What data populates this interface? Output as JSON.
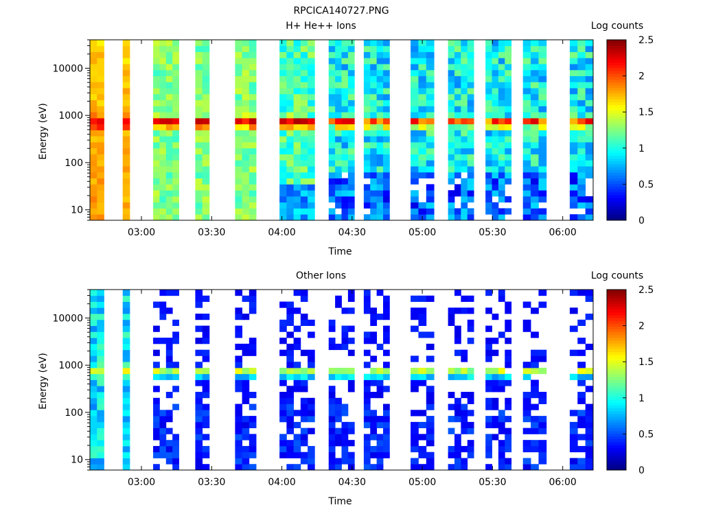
{
  "figure_title": "RPCICA140727.PNG",
  "chart_data": [
    {
      "type": "heatmap",
      "title": "H+ He++ Ions",
      "xlabel": "Time",
      "ylabel": "Energy (eV)",
      "yscale": "log",
      "ylim": [
        6,
        40000
      ],
      "y_tick_labels": [
        "10",
        "100",
        "1000",
        "10000"
      ],
      "y_tick_values": [
        10,
        100,
        1000,
        10000
      ],
      "x_tick_labels": [
        "03:00",
        "03:30",
        "04:00",
        "04:30",
        "05:00",
        "05:30",
        "06:00"
      ],
      "x_tick_minutes": [
        180,
        210,
        240,
        270,
        300,
        330,
        360
      ],
      "xlim_minutes": [
        158,
        373
      ],
      "colorbar": {
        "label": "Log counts",
        "min": 0,
        "max": 2.5,
        "ticks": [
          "0",
          "0.5",
          "1",
          "1.5",
          "2",
          "2.5"
        ],
        "colormap": "jet"
      },
      "data_blocks_minutes": [
        {
          "start": 158,
          "end": 164,
          "level": "high"
        },
        {
          "start": 172,
          "end": 175,
          "level": "high"
        },
        {
          "start": 185,
          "end": 196,
          "level": "mid"
        },
        {
          "start": 203,
          "end": 209,
          "level": "mid"
        },
        {
          "start": 220,
          "end": 229,
          "level": "mid"
        },
        {
          "start": 239,
          "end": 254,
          "level": "mid-low"
        },
        {
          "start": 260,
          "end": 271,
          "level": "low"
        },
        {
          "start": 275,
          "end": 286,
          "level": "low"
        },
        {
          "start": 295,
          "end": 305,
          "level": "low"
        },
        {
          "start": 311,
          "end": 322,
          "level": "low"
        },
        {
          "start": 327,
          "end": 338,
          "level": "low"
        },
        {
          "start": 343,
          "end": 353,
          "level": "low"
        },
        {
          "start": 363,
          "end": 373,
          "level": "low"
        }
      ],
      "peak_energy_eV": 700
    },
    {
      "type": "heatmap",
      "title": "Other Ions",
      "xlabel": "Time",
      "ylabel": "Energy (eV)",
      "yscale": "log",
      "ylim": [
        6,
        40000
      ],
      "y_tick_labels": [
        "10",
        "100",
        "1000",
        "10000"
      ],
      "y_tick_values": [
        10,
        100,
        1000,
        10000
      ],
      "x_tick_labels": [
        "03:00",
        "03:30",
        "04:00",
        "04:30",
        "05:00",
        "05:30",
        "06:00"
      ],
      "x_tick_minutes": [
        180,
        210,
        240,
        270,
        300,
        330,
        360
      ],
      "xlim_minutes": [
        158,
        373
      ],
      "colorbar": {
        "label": "Log counts",
        "min": 0,
        "max": 2.5,
        "ticks": [
          "0",
          "0.5",
          "1",
          "1.5",
          "2",
          "2.5"
        ],
        "colormap": "jet"
      },
      "data_blocks_minutes": [
        {
          "start": 158,
          "end": 164,
          "level": "mid"
        },
        {
          "start": 172,
          "end": 175,
          "level": "mid"
        },
        {
          "start": 185,
          "end": 196,
          "level": "sparse"
        },
        {
          "start": 203,
          "end": 209,
          "level": "sparse"
        },
        {
          "start": 220,
          "end": 229,
          "level": "sparse"
        },
        {
          "start": 239,
          "end": 254,
          "level": "sparse"
        },
        {
          "start": 260,
          "end": 271,
          "level": "sparse"
        },
        {
          "start": 275,
          "end": 286,
          "level": "sparse"
        },
        {
          "start": 295,
          "end": 305,
          "level": "sparse"
        },
        {
          "start": 311,
          "end": 322,
          "level": "sparse"
        },
        {
          "start": 327,
          "end": 338,
          "level": "sparse"
        },
        {
          "start": 343,
          "end": 353,
          "level": "sparse"
        },
        {
          "start": 363,
          "end": 373,
          "level": "sparse"
        }
      ],
      "peak_energy_eV": 700
    }
  ]
}
